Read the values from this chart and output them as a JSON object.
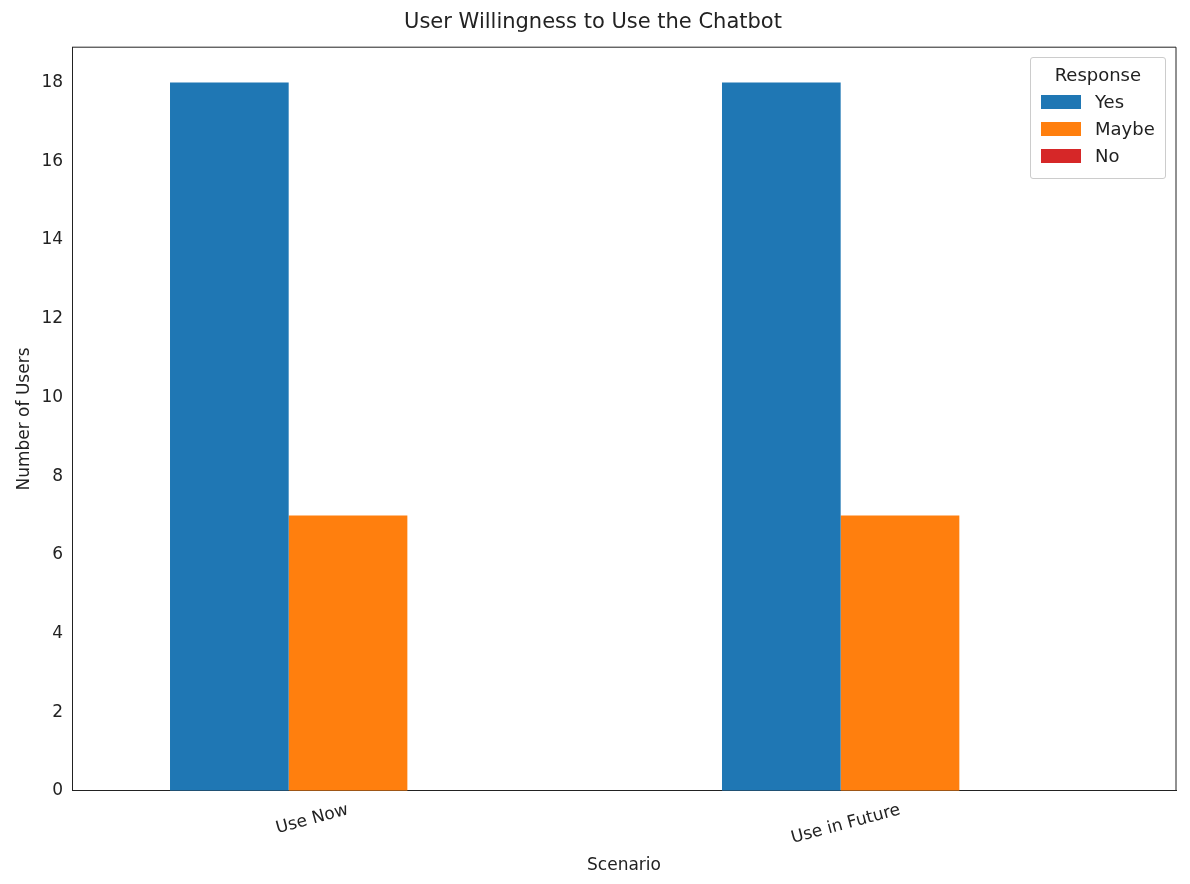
{
  "chart_data": {
    "type": "bar",
    "title": "User Willingness to Use the Chatbot",
    "xlabel": "Scenario",
    "ylabel": "Number of Users",
    "legend_title": "Response",
    "legend": "top right",
    "grid": false,
    "categories": [
      "Use Now",
      "Use in Future"
    ],
    "series": [
      {
        "name": "Yes",
        "color": "#1f77b4",
        "values": [
          18,
          18
        ]
      },
      {
        "name": "Maybe",
        "color": "#ff7f0e",
        "values": [
          7,
          7
        ]
      },
      {
        "name": "No",
        "color": "#d62728",
        "values": [
          0,
          0
        ]
      }
    ],
    "ylim": [
      0,
      18.9
    ],
    "yticks": [
      0,
      2,
      4,
      6,
      8,
      10,
      12,
      14,
      16,
      18
    ]
  }
}
